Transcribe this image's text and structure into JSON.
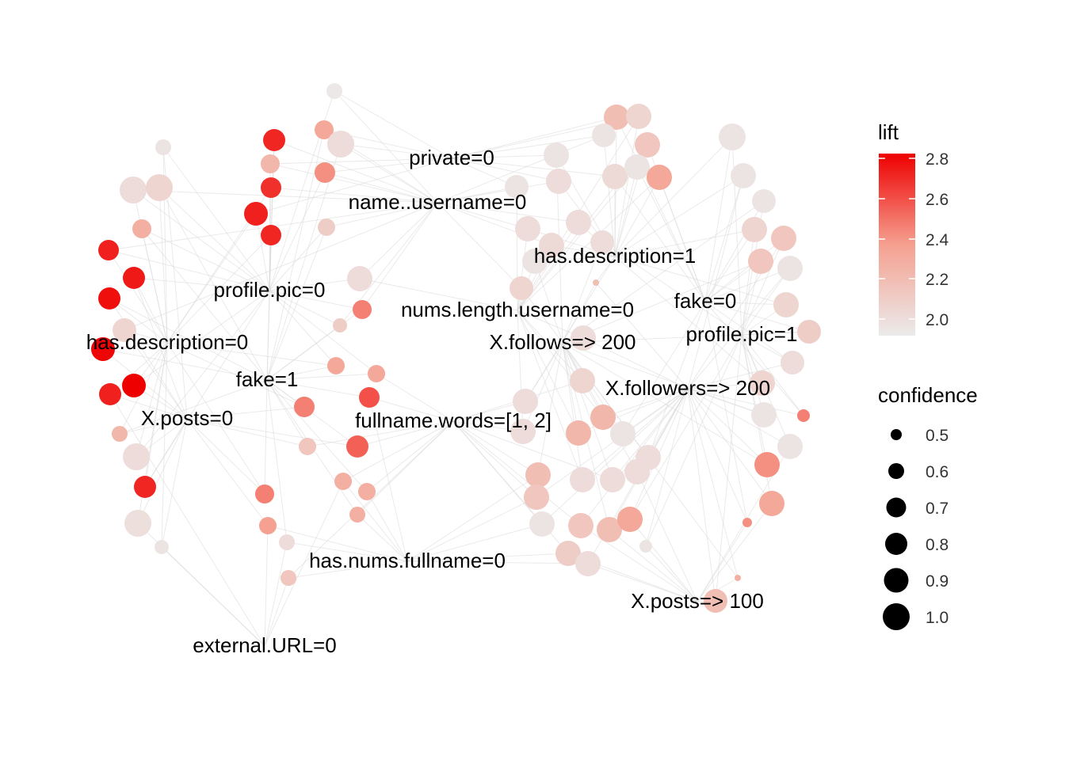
{
  "chart_data": {
    "type": "network",
    "item_labels": [
      "private=0",
      "name..username=0",
      "has.description=1",
      "profile.pic=0",
      "nums.length.username=0",
      "fake=0",
      "has.description=0",
      "X.follows=> 200",
      "profile.pic=1",
      "fake=1",
      "X.followers=> 200",
      "X.posts=0",
      "fullname.words=[1, 2]",
      "has.nums.fullname=0",
      "X.posts=> 100",
      "external.URL=0"
    ],
    "lift_legend": {
      "title": "lift",
      "ticks": [
        "2.8",
        "2.6",
        "2.4",
        "2.2",
        "2.0"
      ],
      "range": [
        1.95,
        2.82
      ],
      "colors": {
        "low": "#ebebeb",
        "high": "#ee0000"
      }
    },
    "confidence_legend": {
      "title": "confidence",
      "ticks": [
        "0.5",
        "0.6",
        "0.7",
        "0.8",
        "0.9",
        "1.0"
      ]
    },
    "edge_color": "#d9d9d9"
  }
}
